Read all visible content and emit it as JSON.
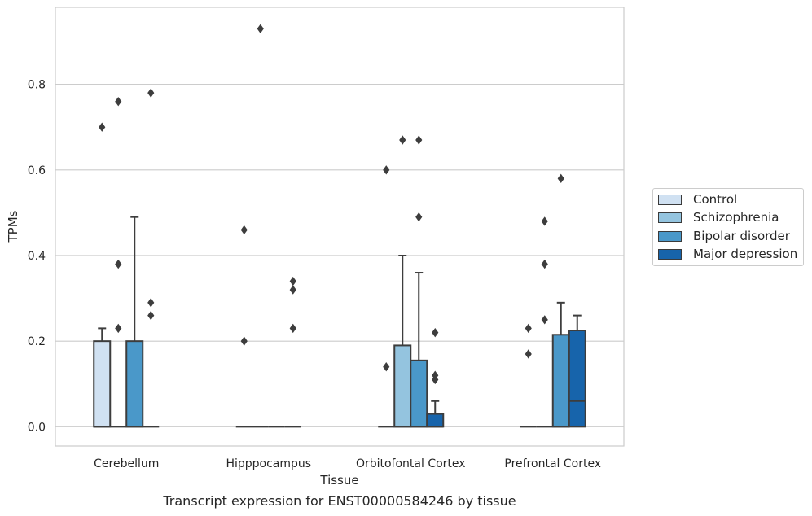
{
  "chart_data": {
    "type": "box",
    "title": "Transcript expression for ENST00000584246 by tissue",
    "xlabel": "Tissue",
    "ylabel": "TPMs",
    "ylim": [
      -0.045,
      0.98
    ],
    "yticks": [
      0.0,
      0.2,
      0.4,
      0.6,
      0.8
    ],
    "ytick_labels": [
      "0.0",
      "0.2",
      "0.4",
      "0.6",
      "0.8"
    ],
    "grid": "horizontal",
    "legend_position": "right",
    "categories": [
      "Cerebellum",
      "Hipppocampus",
      "Orbitofontal Cortex",
      "Prefrontal Cortex"
    ],
    "series": [
      {
        "name": "Control",
        "color": "#d0e1f2",
        "boxes": [
          {
            "q1": 0.0,
            "median": 0.0,
            "q3": 0.2,
            "whisker_low": 0.0,
            "whisker_high": 0.23,
            "outliers": [
              0.7
            ]
          },
          {
            "q1": 0.0,
            "median": 0.0,
            "q3": 0.0,
            "whisker_low": 0.0,
            "whisker_high": 0.0,
            "outliers": [
              0.2,
              0.46
            ]
          },
          {
            "q1": 0.0,
            "median": 0.0,
            "q3": 0.0,
            "whisker_low": 0.0,
            "whisker_high": 0.0,
            "outliers": [
              0.14,
              0.6
            ]
          },
          {
            "q1": 0.0,
            "median": 0.0,
            "q3": 0.0,
            "whisker_low": 0.0,
            "whisker_high": 0.0,
            "outliers": [
              0.17,
              0.23
            ]
          }
        ]
      },
      {
        "name": "Schizophrenia",
        "color": "#94c4df",
        "boxes": [
          {
            "q1": 0.0,
            "median": 0.0,
            "q3": 0.0,
            "whisker_low": 0.0,
            "whisker_high": 0.0,
            "outliers": [
              0.23,
              0.38,
              0.76
            ]
          },
          {
            "q1": 0.0,
            "median": 0.0,
            "q3": 0.0,
            "whisker_low": 0.0,
            "whisker_high": 0.0,
            "outliers": [
              0.93
            ]
          },
          {
            "q1": 0.0,
            "median": 0.0,
            "q3": 0.19,
            "whisker_low": 0.0,
            "whisker_high": 0.4,
            "outliers": [
              0.67
            ]
          },
          {
            "q1": 0.0,
            "median": 0.0,
            "q3": 0.0,
            "whisker_low": 0.0,
            "whisker_high": 0.0,
            "outliers": [
              0.25,
              0.38,
              0.48
            ]
          }
        ]
      },
      {
        "name": "Bipolar disorder",
        "color": "#4a98c9",
        "boxes": [
          {
            "q1": 0.0,
            "median": 0.0,
            "q3": 0.2,
            "whisker_low": 0.0,
            "whisker_high": 0.49,
            "outliers": []
          },
          {
            "q1": 0.0,
            "median": 0.0,
            "q3": 0.0,
            "whisker_low": 0.0,
            "whisker_high": 0.0,
            "outliers": []
          },
          {
            "q1": 0.0,
            "median": 0.0,
            "q3": 0.155,
            "whisker_low": 0.0,
            "whisker_high": 0.36,
            "outliers": [
              0.49,
              0.67
            ]
          },
          {
            "q1": 0.0,
            "median": 0.0,
            "q3": 0.215,
            "whisker_low": 0.0,
            "whisker_high": 0.29,
            "outliers": [
              0.58
            ]
          }
        ]
      },
      {
        "name": "Major depression",
        "color": "#1764ab",
        "boxes": [
          {
            "q1": 0.0,
            "median": 0.0,
            "q3": 0.0,
            "whisker_low": 0.0,
            "whisker_high": 0.0,
            "outliers": [
              0.26,
              0.29,
              0.78
            ]
          },
          {
            "q1": 0.0,
            "median": 0.0,
            "q3": 0.0,
            "whisker_low": 0.0,
            "whisker_high": 0.0,
            "outliers": [
              0.23,
              0.32,
              0.34
            ]
          },
          {
            "q1": 0.0,
            "median": 0.0,
            "q3": 0.03,
            "whisker_low": 0.0,
            "whisker_high": 0.06,
            "outliers": [
              0.11,
              0.12,
              0.22
            ]
          },
          {
            "q1": 0.0,
            "median": 0.06,
            "q3": 0.225,
            "whisker_low": 0.0,
            "whisker_high": 0.26,
            "outliers": []
          }
        ]
      }
    ]
  }
}
